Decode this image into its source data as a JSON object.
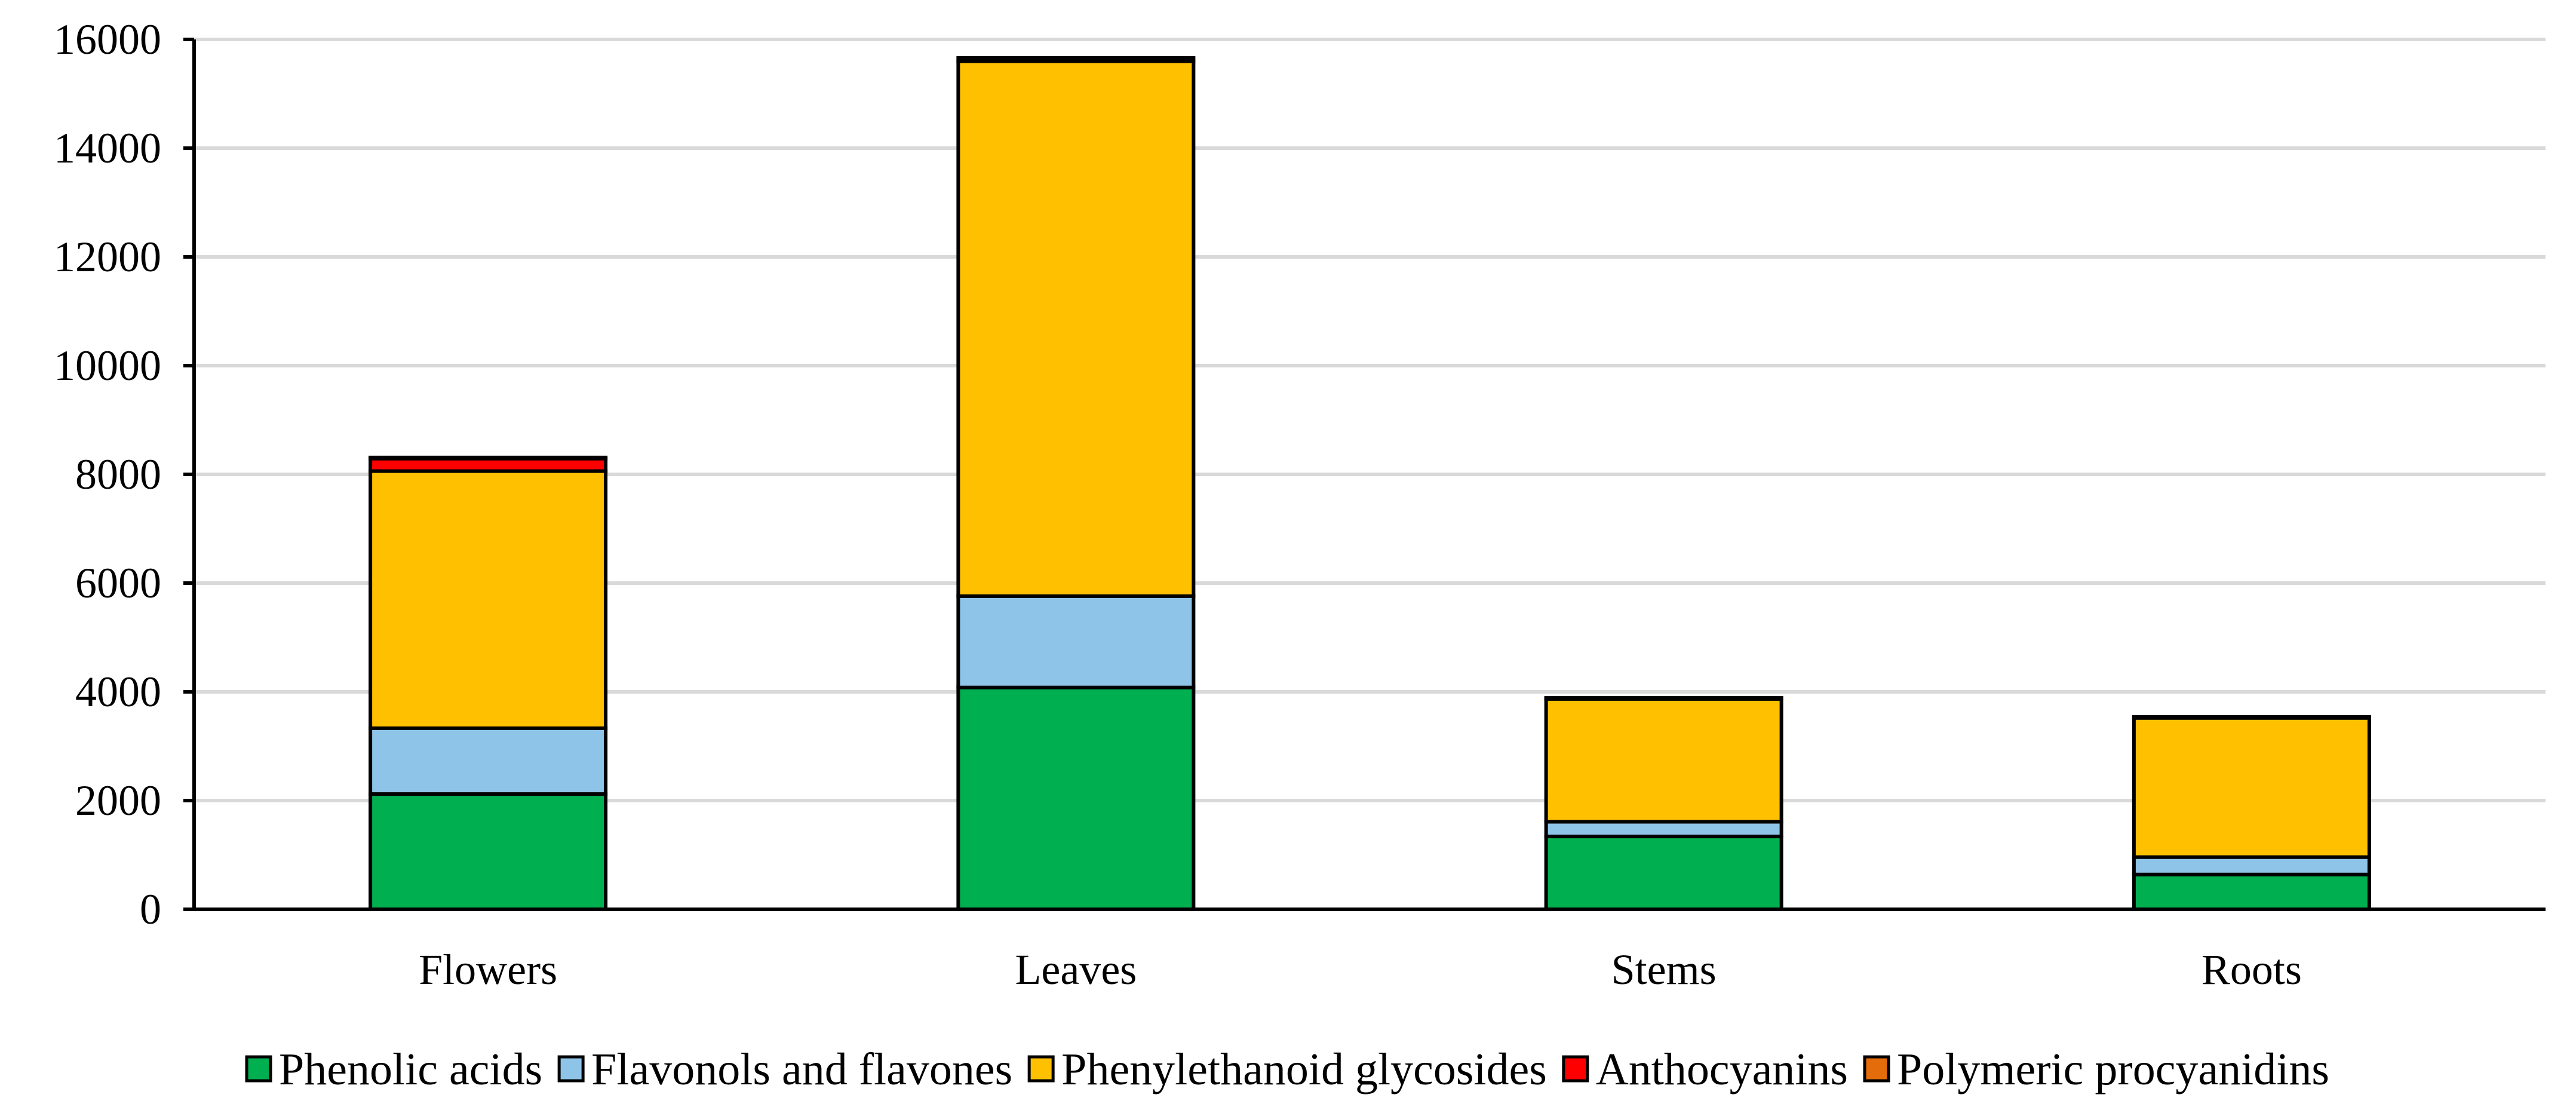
{
  "chart_data": {
    "type": "bar",
    "stacked": true,
    "categories": [
      "Flowers",
      "Leaves",
      "Stems",
      "Roots"
    ],
    "series": [
      {
        "name": "Phenolic acids",
        "color": "#00B050",
        "values": [
          2120,
          4080,
          1340,
          640
        ]
      },
      {
        "name": "Flavonols and flavones",
        "color": "#8EC4E8",
        "values": [
          1210,
          1680,
          270,
          320
        ]
      },
      {
        "name": "Phenylethanoid glycosides",
        "color": "#FFC000",
        "values": [
          4730,
          9840,
          2260,
          2560
        ]
      },
      {
        "name": "Anthocyanins",
        "color": "#FF0000",
        "values": [
          230,
          0,
          0,
          0
        ]
      },
      {
        "name": "Polymeric procyanidins",
        "color": "#E46C0A",
        "values": [
          20,
          60,
          20,
          20
        ]
      }
    ],
    "ylim": [
      0,
      16000
    ],
    "yticks": [
      0,
      2000,
      4000,
      6000,
      8000,
      10000,
      12000,
      14000,
      16000
    ],
    "title": "",
    "xlabel": "",
    "ylabel": "",
    "grid": true,
    "legend_position": "bottom"
  }
}
